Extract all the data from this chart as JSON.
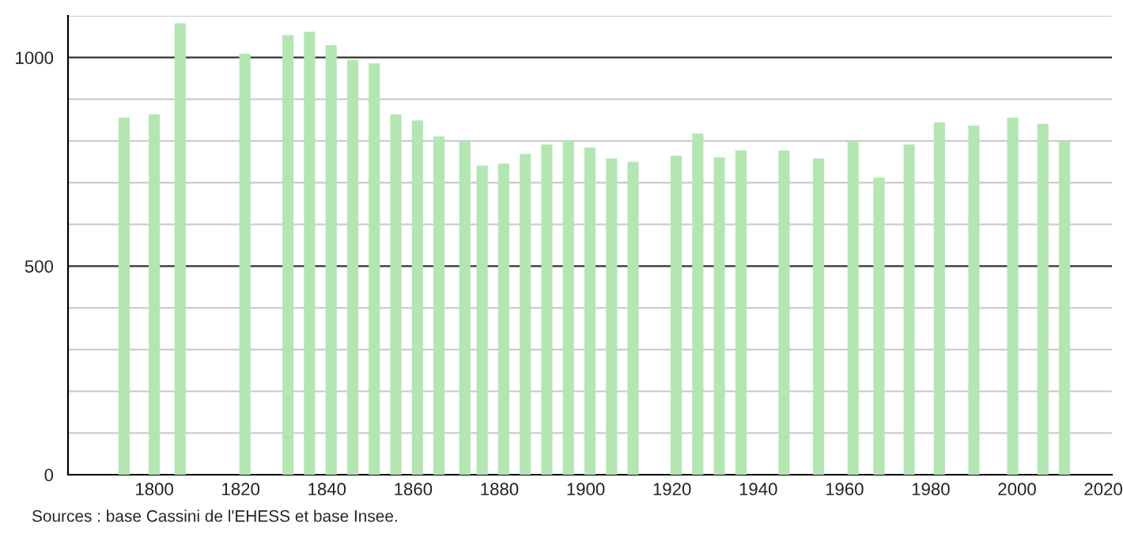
{
  "chart_data": {
    "type": "bar",
    "x": [
      1793,
      1800,
      1806,
      1821,
      1831,
      1836,
      1841,
      1846,
      1851,
      1856,
      1861,
      1866,
      1872,
      1876,
      1881,
      1886,
      1891,
      1896,
      1901,
      1906,
      1911,
      1921,
      1926,
      1931,
      1936,
      1946,
      1954,
      1962,
      1968,
      1975,
      1982,
      1990,
      1999,
      2006,
      2011
    ],
    "values": [
      856,
      864,
      1082,
      1009,
      1054,
      1062,
      1030,
      994,
      986,
      864,
      849,
      811,
      799,
      741,
      746,
      769,
      792,
      802,
      784,
      758,
      750,
      765,
      818,
      761,
      777,
      777,
      758,
      798,
      712,
      792,
      845,
      837,
      856,
      841,
      799
    ],
    "color": "#b3e6b3",
    "xlim": [
      1780,
      2022
    ],
    "xticks": [
      1800,
      1820,
      1840,
      1860,
      1880,
      1900,
      1920,
      1940,
      1960,
      1980,
      2000,
      2020
    ],
    "ylim": [
      0,
      1100
    ],
    "yticks": [
      0,
      {
        "value": 100,
        "label": null
      },
      {
        "value": 200,
        "label": null
      },
      {
        "value": 300,
        "label": null
      },
      {
        "value": 400,
        "label": null
      },
      500,
      {
        "value": 600,
        "label": null
      },
      {
        "value": 700,
        "label": null
      },
      {
        "value": 800,
        "label": null
      },
      {
        "value": 900,
        "label": null
      },
      1000,
      {
        "value": 1100,
        "label": null
      }
    ],
    "grid": "y",
    "legend": false,
    "annotations": [
      "Sources : base Cassini de l'EHESS et base Insee."
    ]
  }
}
